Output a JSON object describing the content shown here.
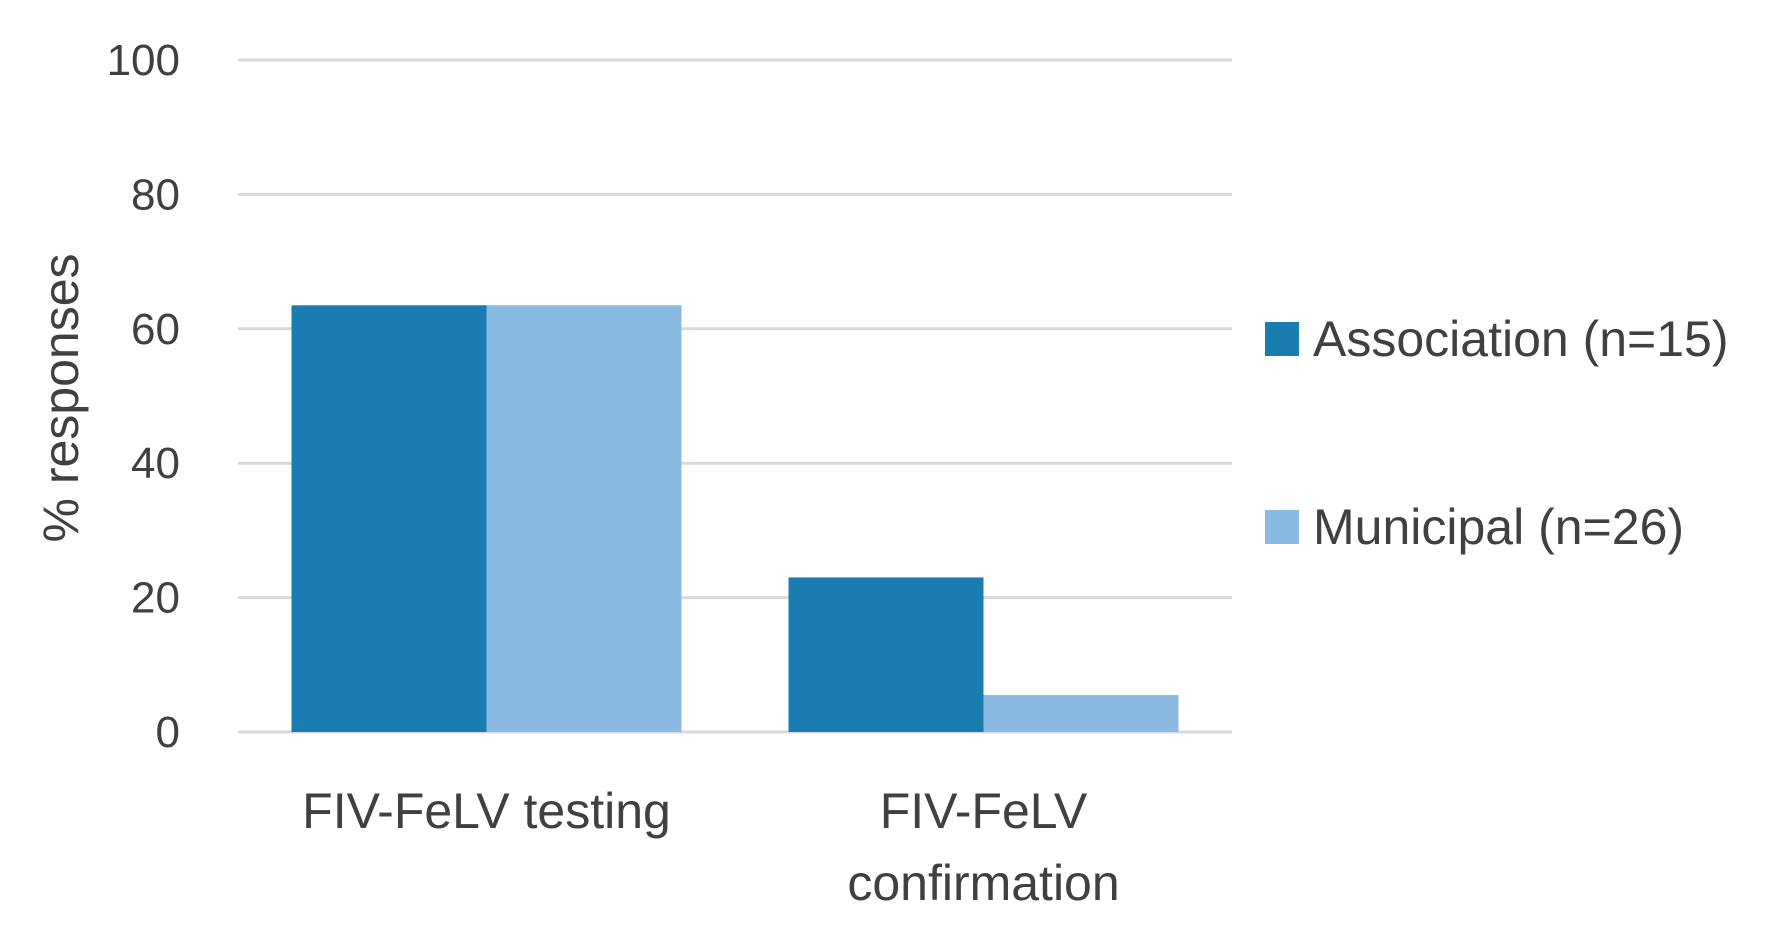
{
  "chart_data": {
    "type": "bar",
    "categories": [
      [
        "FIV-FeLV testing"
      ],
      [
        "FIV-FeLV",
        "confirmation"
      ]
    ],
    "series": [
      {
        "name": "Association (n=15)",
        "color": "#1a7db2",
        "values": [
          63.5,
          23
        ]
      },
      {
        "name": "Municipal (n=26)",
        "color": "#8ab9e1",
        "values": [
          63.5,
          5.5
        ]
      }
    ],
    "ylabel": "% responses",
    "xlabel": "",
    "ylim": [
      0,
      100
    ],
    "yticks": [
      0,
      20,
      40,
      60,
      80,
      100
    ],
    "grid": true,
    "legend_position": "right",
    "gridline_color": "#d9d9d9"
  }
}
